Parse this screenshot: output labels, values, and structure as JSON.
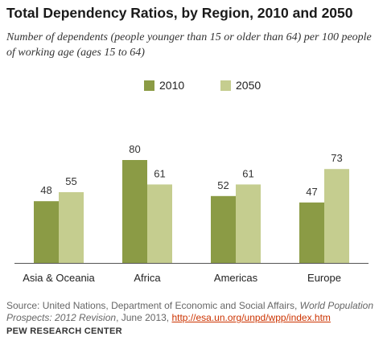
{
  "header": {
    "title": "Total Dependency Ratios, by Region, 2010 and 2050",
    "subtitle": "Number of dependents (people younger than 15 or older than 64) per 100 people of working age (ages 15 to 64)"
  },
  "footer": {
    "source_prefix": "Source: United Nations, Department of Economic and Social Affairs, ",
    "source_title": "World Population Prospects: 2012 Revision",
    "source_middle": ", June 2013, ",
    "source_link": "http://esa.un.org/unpd/wpp/index.htm",
    "brand": "PEW RESEARCH CENTER"
  },
  "colors": {
    "series_2010": "#8b9b45",
    "series_2050": "#c5cd8f",
    "axis": "#555555",
    "link": "#cc3300"
  },
  "chart_data": {
    "type": "bar",
    "categories": [
      "Asia & Oceania",
      "Africa",
      "Americas",
      "Europe"
    ],
    "series": [
      {
        "name": "2010",
        "values": [
          48,
          80,
          52,
          47
        ]
      },
      {
        "name": "2050",
        "values": [
          55,
          61,
          61,
          73
        ]
      }
    ],
    "title": "Total Dependency Ratios, by Region, 2010 and 2050",
    "xlabel": "",
    "ylabel": "",
    "ylim": [
      0,
      85
    ],
    "grid": false,
    "legend": "top-center",
    "data_labels": true
  }
}
